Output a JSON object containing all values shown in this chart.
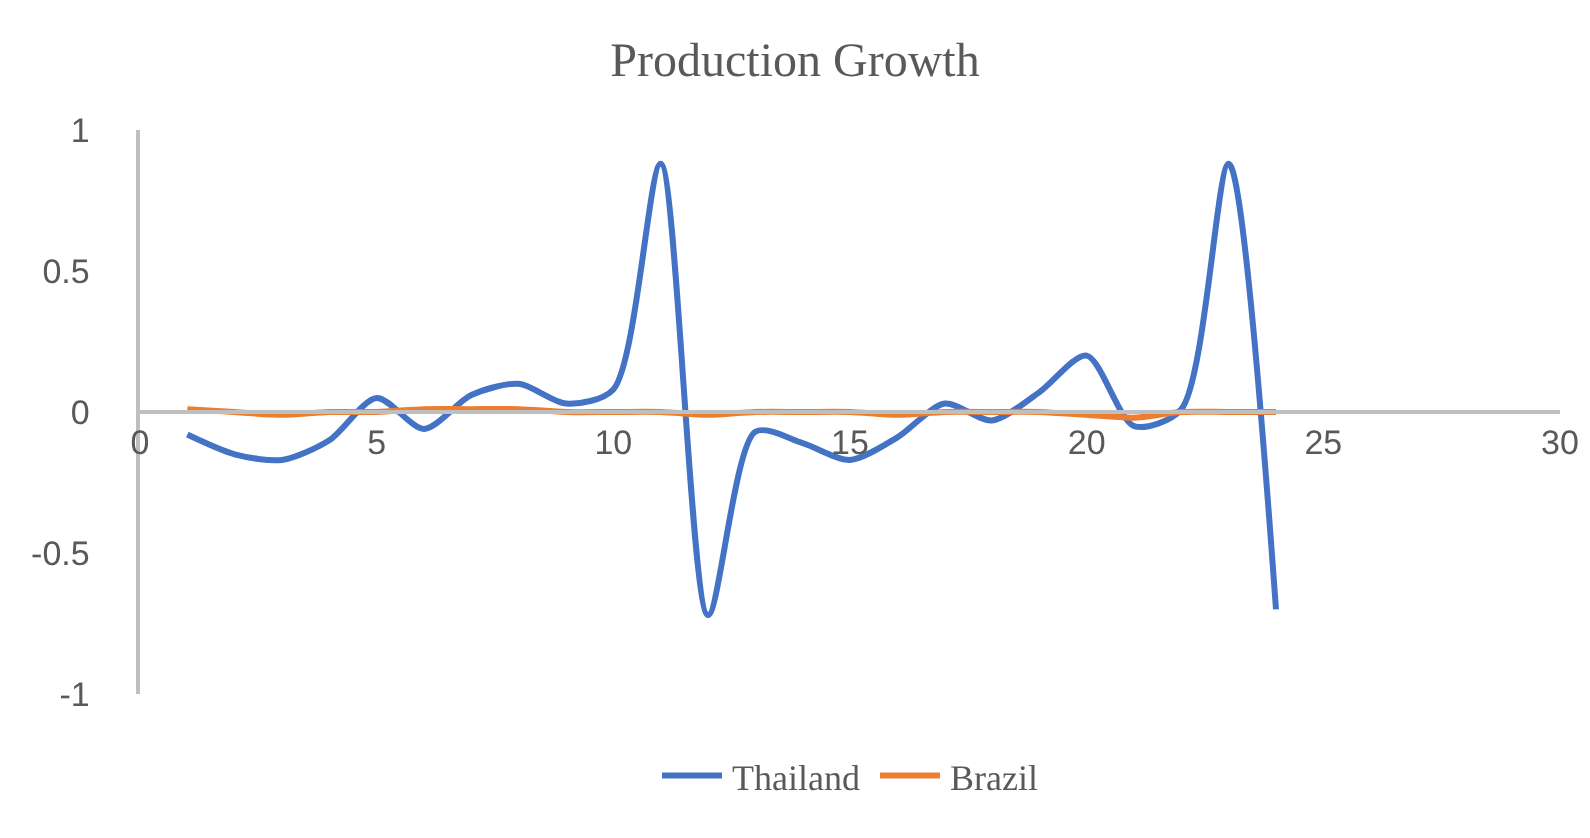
{
  "chart_data": {
    "type": "line",
    "title": "Production Growth",
    "x": [
      1,
      2,
      3,
      4,
      5,
      6,
      7,
      8,
      9,
      10,
      11,
      12,
      13,
      14,
      15,
      16,
      17,
      18,
      19,
      20,
      21,
      22,
      23,
      24
    ],
    "series": [
      {
        "name": "Thailand",
        "color": "#4472c4",
        "values": [
          -0.08,
          -0.15,
          -0.17,
          -0.1,
          0.05,
          -0.06,
          0.06,
          0.1,
          0.03,
          0.08,
          0.88,
          -0.72,
          -0.07,
          -0.11,
          -0.17,
          -0.09,
          0.03,
          -0.03,
          0.07,
          0.2,
          -0.05,
          0.01,
          0.88,
          -0.7
        ]
      },
      {
        "name": "Brazil",
        "color": "#ed7d31",
        "values": [
          0.01,
          0,
          -0.01,
          0,
          0,
          0.01,
          0.01,
          0.01,
          0,
          0,
          0,
          -0.01,
          0,
          0,
          0,
          -0.01,
          0,
          0,
          0,
          -0.01,
          -0.02,
          0,
          0,
          0
        ]
      }
    ],
    "xlim": [
      0,
      30
    ],
    "xticks": [
      0,
      5,
      10,
      15,
      20,
      25,
      30
    ],
    "ylim": [
      -1,
      1
    ],
    "yticks": [
      -1,
      -0.5,
      0,
      0.5,
      1
    ],
    "grid": false,
    "legend": "bottom",
    "marker": "none",
    "line_style": "solid"
  }
}
